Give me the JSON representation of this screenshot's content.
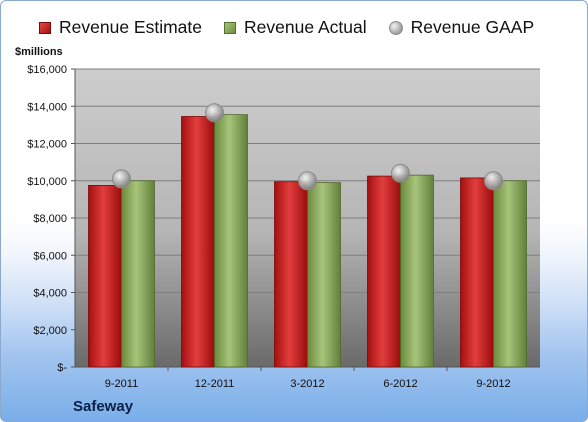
{
  "legend": {
    "estimate": "Revenue Estimate",
    "actual": "Revenue Actual",
    "gaap": "Revenue GAAP"
  },
  "units_label": "$millions",
  "company": "Safeway",
  "colors": {
    "estimate": "#c0191b",
    "actual": "#8aa759",
    "gaap": "#b3b3b3"
  },
  "chart_data": {
    "type": "bar",
    "categories": [
      "9-2011",
      "12-2011",
      "3-2012",
      "6-2012",
      "9-2012"
    ],
    "series": [
      {
        "name": "Revenue Estimate",
        "values": [
          9750,
          13450,
          9950,
          10250,
          10150
        ]
      },
      {
        "name": "Revenue Actual",
        "values": [
          10000,
          13550,
          9900,
          10300,
          10000
        ]
      },
      {
        "name": "Revenue GAAP",
        "type": "scatter",
        "values": [
          10100,
          13650,
          10000,
          10400,
          10000
        ]
      }
    ],
    "yticks": [
      "$-",
      "$2,000",
      "$4,000",
      "$6,000",
      "$8,000",
      "$10,000",
      "$12,000",
      "$14,000",
      "$16,000"
    ],
    "ylim": [
      0,
      16000
    ],
    "ylabel": "$millions",
    "xlabel": "",
    "legend_position": "top",
    "grid": true
  }
}
